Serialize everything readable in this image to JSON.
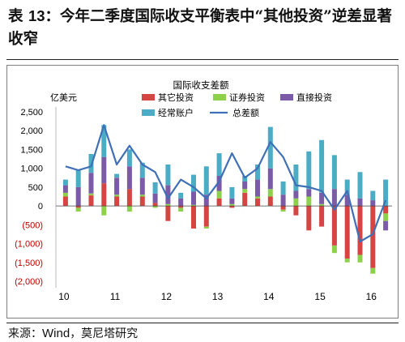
{
  "title": {
    "prefix": "表 ",
    "number": "13",
    "text": "：今年二季度国际收支平衡表中“其他投资”逆差显著收窄"
  },
  "source": {
    "prefix": "来源：",
    "name": "Wind",
    "rest": "，莫尼塔研究"
  },
  "colors": {
    "other": "#d64541",
    "securities": "#8dd14a",
    "direct": "#7b5aa8",
    "current": "#4bacc6",
    "total": "#3f6fb6",
    "negative_tick": "#c00000"
  },
  "chart_data": {
    "type": "bar",
    "stacked": true,
    "title": "国际收支差额",
    "ylabel": "亿美元",
    "ylim": [
      -2000,
      2500
    ],
    "yticks": [
      2500,
      2000,
      1500,
      1000,
      500,
      0,
      -500,
      -1000,
      -1500,
      -2000
    ],
    "ytick_labels": [
      "2,500",
      "2,000",
      "1,500",
      "1,000",
      "500",
      "0",
      "(500)",
      "(1,000)",
      "(1,500)",
      "(2,000)"
    ],
    "grid": false,
    "legend_position": "top-right",
    "x_year_labels": [
      "10",
      "11",
      "12",
      "13",
      "14",
      "15",
      "16"
    ],
    "categories": [
      "10Q1",
      "10Q2",
      "10Q3",
      "10Q4",
      "11Q1",
      "11Q2",
      "11Q3",
      "11Q4",
      "12Q1",
      "12Q2",
      "12Q3",
      "12Q4",
      "13Q1",
      "13Q2",
      "13Q3",
      "13Q4",
      "14Q1",
      "14Q2",
      "14Q3",
      "14Q4",
      "15Q1",
      "15Q2",
      "15Q3",
      "15Q4",
      "16Q1",
      "16Q2"
    ],
    "series": [
      {
        "name": "其它投资",
        "key": "other",
        "values": [
          250,
          -50,
          280,
          600,
          250,
          450,
          250,
          80,
          -400,
          -50,
          -600,
          -550,
          200,
          -50,
          350,
          200,
          250,
          -100,
          -250,
          -650,
          -550,
          -1050,
          -1400,
          -1300,
          -1650,
          -200
        ]
      },
      {
        "name": "证券投资",
        "key": "securities",
        "values": [
          100,
          -100,
          50,
          -250,
          50,
          -150,
          50,
          -50,
          50,
          -100,
          30,
          -50,
          200,
          50,
          100,
          50,
          200,
          -50,
          200,
          250,
          50,
          -200,
          -100,
          -200,
          -150,
          -200
        ]
      },
      {
        "name": "直接投资",
        "key": "direct",
        "values": [
          200,
          500,
          550,
          700,
          450,
          600,
          450,
          250,
          500,
          200,
          350,
          300,
          400,
          150,
          200,
          450,
          550,
          300,
          200,
          200,
          300,
          450,
          300,
          200,
          150,
          -250
        ]
      },
      {
        "name": "经常账户",
        "key": "current",
        "values": [
          150,
          450,
          500,
          850,
          100,
          450,
          400,
          300,
          550,
          150,
          450,
          750,
          600,
          300,
          150,
          400,
          1100,
          350,
          700,
          1000,
          1400,
          900,
          400,
          700,
          250,
          700
        ]
      }
    ],
    "line": {
      "name": "总差额",
      "key": "total",
      "values": [
        1050,
        950,
        1050,
        2150,
        1100,
        1600,
        1100,
        900,
        200,
        700,
        500,
        200,
        650,
        1400,
        750,
        1000,
        1700,
        1300,
        550,
        500,
        400,
        -100,
        400,
        -950,
        -750,
        150
      ]
    }
  }
}
